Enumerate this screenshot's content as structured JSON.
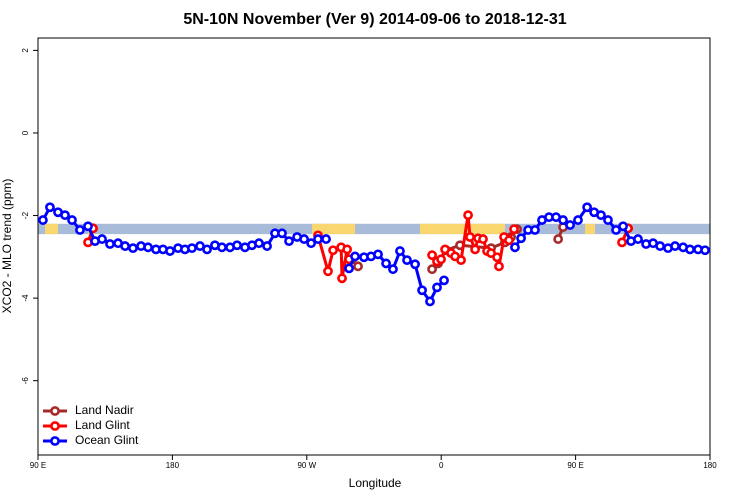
{
  "chart_data": {
    "type": "line",
    "title": "5N-10N November (Ver 9)   2014-09-06 to 2018-12-31",
    "x_label": "Longitude",
    "y_label": "XCO2 - MLO trend (ppm)",
    "xlim": [
      90,
      540
    ],
    "ylim": [
      -7.8,
      2.3
    ],
    "xticks": [
      {
        "value": 90,
        "label": "90 E"
      },
      180,
      {
        "value": 270,
        "label": "90 W"
      },
      {
        "value": 360,
        "label": "0"
      },
      {
        "value": 450,
        "label": "90 E"
      },
      {
        "value": 540,
        "label": "180"
      }
    ],
    "yticks": [
      2,
      0,
      -2,
      -4,
      -6
    ],
    "legend": "bottomleft",
    "band": {
      "range": [
        -2.45,
        -2.2
      ],
      "color": "#a8bcd9"
    },
    "land": {
      "color": "#f9d66e",
      "ranges": [
        [
          94.7,
          103.4
        ],
        [
          123.5,
          128.2
        ],
        [
          273.5,
          302.3
        ],
        [
          345.8,
          402.7
        ],
        [
          456.3,
          463.0
        ]
      ]
    },
    "series": [
      {
        "name": "Land Nadir",
        "color": "#a52a2a",
        "x": [
          126.8,
          null,
          297.0,
          300.3,
          304.3,
          null,
          353.9,
          357.9,
          363.3,
          372.6,
          393.4,
          402.7,
          406.8,
          410.8,
          null,
          438.3,
          441.6,
          null,
          485.1
        ],
        "values": [
          -2.31,
          null,
          -3.18,
          -3.06,
          -3.23,
          null,
          -3.3,
          -3.16,
          -2.84,
          -2.72,
          -2.79,
          -2.65,
          -2.52,
          -2.33,
          null,
          -2.57,
          -2.28,
          null,
          -2.31
        ]
      },
      {
        "name": "Land Glint",
        "color": "#ff0000",
        "x": [
          123.5,
          126.8,
          null,
          277.5,
          284.2,
          287.6,
          293.0,
          293.6,
          297.0,
          298.3,
          null,
          353.9,
          357.2,
          359.9,
          362.6,
          366.6,
          369.3,
          373.3,
          378.0,
          379.3,
          382.7,
          384.7,
          388.0,
          390.7,
          393.4,
          397.4,
          398.7,
          402.1,
          405.4,
          408.8,
          null,
          481.1,
          485.1
        ],
        "values": [
          -2.65,
          -2.31,
          null,
          -2.48,
          -3.35,
          -2.84,
          -2.77,
          -3.52,
          -2.82,
          -3.06,
          null,
          -2.96,
          -3.11,
          -3.06,
          -2.82,
          -2.91,
          -2.99,
          -3.08,
          -1.99,
          -2.52,
          -2.82,
          -2.55,
          -2.57,
          -2.86,
          -2.91,
          -3.01,
          -3.23,
          -2.52,
          -2.6,
          -2.33,
          null,
          -2.65,
          -2.31
        ]
      },
      {
        "name": "Ocean Glint",
        "color": "#0000ff",
        "x": [
          93.3,
          98.0,
          103.4,
          108.1,
          112.8,
          118.1,
          123.5,
          128.2,
          132.9,
          138.2,
          143.6,
          148.3,
          153.6,
          159.0,
          163.7,
          169.0,
          173.7,
          178.4,
          183.8,
          188.4,
          193.1,
          198.5,
          203.2,
          208.5,
          213.2,
          218.6,
          223.3,
          228.6,
          233.3,
          238.0,
          243.4,
          248.7,
          253.4,
          258.1,
          263.5,
          268.2,
          272.9,
          277.5,
          282.9,
          null,
          298.3,
          302.3,
          308.3,
          313.0,
          317.7,
          323.1,
          327.7,
          332.4,
          337.1,
          342.5,
          347.2,
          352.5,
          357.2,
          361.9,
          null,
          409.4,
          413.5,
          418.2,
          422.8,
          427.5,
          432.2,
          436.9,
          441.6,
          446.3,
          451.6,
          457.7,
          462.4,
          467.0,
          471.7,
          477.1,
          481.8,
          487.1,
          491.8,
          497.2,
          501.9,
          506.6,
          511.9,
          516.6,
          522.0,
          526.6,
          532.0,
          536.7
        ],
        "values": [
          -2.11,
          -1.8,
          -1.92,
          -1.99,
          -2.11,
          -2.35,
          -2.26,
          -2.62,
          -2.57,
          -2.69,
          -2.67,
          -2.74,
          -2.79,
          -2.74,
          -2.77,
          -2.82,
          -2.82,
          -2.86,
          -2.79,
          -2.82,
          -2.79,
          -2.74,
          -2.82,
          -2.72,
          -2.77,
          -2.77,
          -2.72,
          -2.77,
          -2.72,
          -2.67,
          -2.74,
          -2.43,
          -2.43,
          -2.62,
          -2.52,
          -2.57,
          -2.67,
          -2.57,
          -2.57,
          null,
          -3.28,
          -2.99,
          -3.01,
          -2.99,
          -2.94,
          -3.16,
          -3.3,
          -2.86,
          -3.08,
          -3.18,
          -3.81,
          -4.08,
          -3.74,
          -3.57,
          null,
          -2.77,
          -2.55,
          -2.35,
          -2.35,
          -2.11,
          -2.04,
          -2.04,
          -2.11,
          -2.23,
          -2.11,
          -1.8,
          -1.92,
          -1.99,
          -2.11,
          -2.35,
          -2.26,
          -2.62,
          -2.57,
          -2.69,
          -2.67,
          -2.74,
          -2.79,
          -2.74,
          -2.77,
          -2.82,
          -2.82,
          -2.84
        ]
      }
    ]
  }
}
